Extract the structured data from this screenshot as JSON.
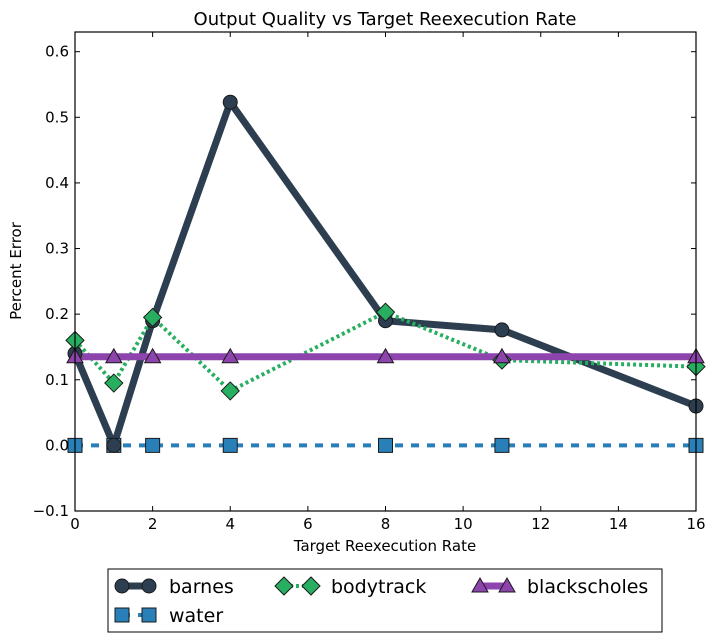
{
  "chart_data": {
    "type": "line",
    "title": "Output Quality vs Target Reexecution Rate",
    "xlabel": "Target Reexecution Rate",
    "ylabel": "Percent Error",
    "xlim": [
      0,
      16
    ],
    "ylim": [
      -0.1,
      0.63
    ],
    "xticks": [
      0,
      2,
      4,
      6,
      8,
      10,
      12,
      14,
      16
    ],
    "yticks": [
      -0.1,
      0.0,
      0.1,
      0.2,
      0.3,
      0.4,
      0.5,
      0.6
    ],
    "legend_position": "below",
    "series": [
      {
        "name": "barnes",
        "x": [
          0,
          1,
          2,
          4,
          8,
          11,
          16
        ],
        "values": [
          0.14,
          0.0,
          0.19,
          0.523,
          0.19,
          0.176,
          0.06
        ],
        "color": "#2c3e50",
        "marker": "circle",
        "line": "solid"
      },
      {
        "name": "water",
        "x": [
          0,
          1,
          2,
          4,
          8,
          11,
          16
        ],
        "values": [
          0.0,
          0.0,
          0.0,
          0.0,
          0.0,
          0.0,
          0.0
        ],
        "color": "#2980b9",
        "marker": "square",
        "line": "dashed"
      },
      {
        "name": "bodytrack",
        "x": [
          0,
          1,
          2,
          4,
          8,
          11,
          16
        ],
        "values": [
          0.16,
          0.095,
          0.195,
          0.083,
          0.203,
          0.13,
          0.12
        ],
        "color": "#27ae60",
        "marker": "diamond",
        "line": "dotted"
      },
      {
        "name": "blackscholes",
        "x": [
          0,
          1,
          2,
          4,
          8,
          11,
          16
        ],
        "values": [
          0.135,
          0.135,
          0.135,
          0.135,
          0.135,
          0.135,
          0.135
        ],
        "color": "#8e44ad",
        "marker": "triangle",
        "line": "solid"
      }
    ]
  }
}
